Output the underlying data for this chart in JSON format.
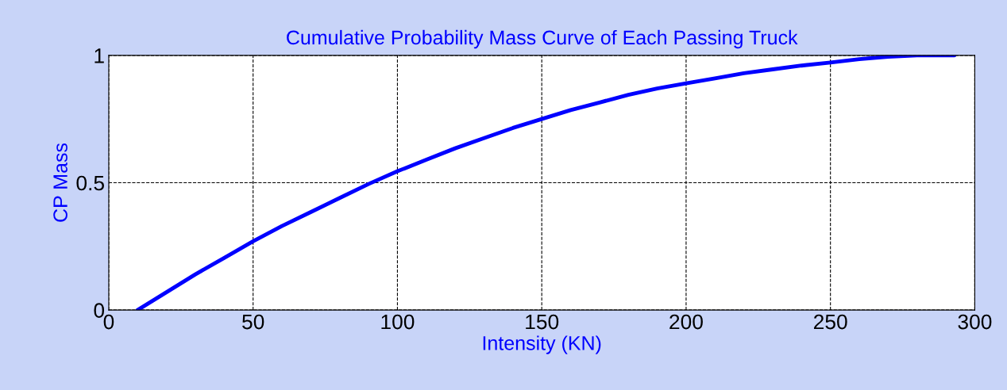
{
  "chart_data": {
    "type": "line",
    "title": "Cumulative Probability Mass Curve of Each Passing Truck",
    "xlabel": "Intensity (KN)",
    "ylabel": "CP Mass",
    "xlim": [
      0,
      300
    ],
    "xticks": [
      0,
      50,
      100,
      150,
      200,
      250,
      300
    ],
    "ylim": [
      0,
      1
    ],
    "yticks": [
      0,
      0.5,
      1
    ],
    "grid": true,
    "marker": "none",
    "line_style": "solid",
    "series": [
      {
        "color": "#0000ff",
        "x": [
          10,
          20,
          30,
          40,
          50,
          60,
          70,
          80,
          90,
          100,
          110,
          120,
          130,
          140,
          150,
          160,
          170,
          180,
          190,
          200,
          210,
          220,
          230,
          240,
          250,
          260,
          270,
          280,
          293
        ],
        "values": [
          0,
          0.07,
          0.14,
          0.205,
          0.27,
          0.33,
          0.385,
          0.44,
          0.495,
          0.545,
          0.59,
          0.635,
          0.675,
          0.715,
          0.75,
          0.785,
          0.815,
          0.845,
          0.87,
          0.89,
          0.91,
          0.93,
          0.945,
          0.96,
          0.972,
          0.985,
          0.995,
          1.0,
          1.0
        ]
      }
    ]
  }
}
